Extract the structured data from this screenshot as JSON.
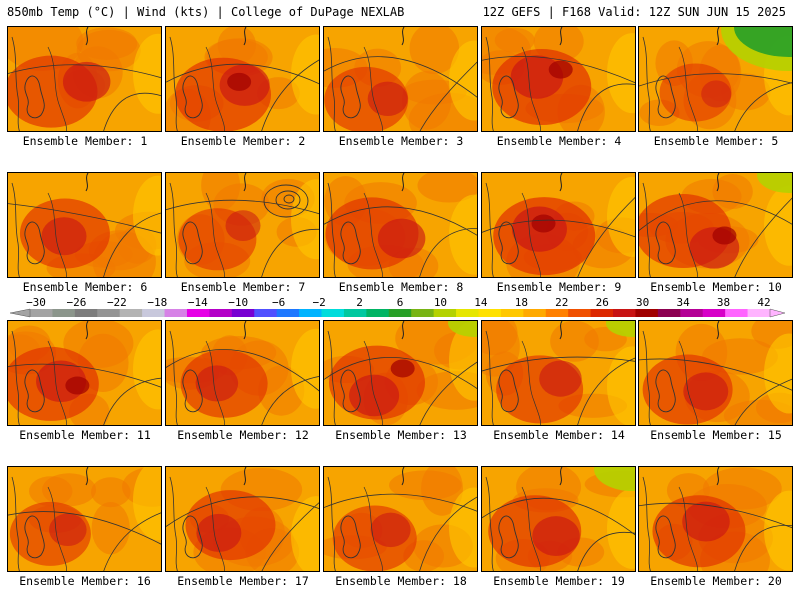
{
  "header": {
    "left": "850mb Temp (°C) | Wind (kts) | College of DuPage NEXLAB",
    "right": "12Z GEFS | F168 Valid: 12Z SUN JUN 15 2025"
  },
  "colorbar": {
    "labels": [
      "-30",
      "-26",
      "-22",
      "-18",
      "-14",
      "-10",
      "-6",
      "-2",
      "2",
      "6",
      "10",
      "14",
      "18",
      "22",
      "26",
      "30",
      "34",
      "38",
      "42"
    ],
    "colors": [
      "#a3a3a3",
      "#8c968c",
      "#7d7d7d",
      "#949494",
      "#b3b3b3",
      "#c8c8dc",
      "#d682e6",
      "#e600e6",
      "#b400c8",
      "#7800d2",
      "#5050ff",
      "#1e78ff",
      "#00b4ff",
      "#00dcdc",
      "#00c8a0",
      "#00b464",
      "#28a028",
      "#78b414",
      "#b4d200",
      "#e6e600",
      "#ffe100",
      "#ffc800",
      "#ffaa00",
      "#ff8000",
      "#f05000",
      "#dc2800",
      "#c81414",
      "#a00000",
      "#8c0050",
      "#b40096",
      "#d700c8",
      "#ff64ff",
      "#ffb4ff"
    ]
  },
  "panels": [
    {
      "label": "Ensemble Member: 1",
      "hot": 0.55,
      "cool": 0
    },
    {
      "label": "Ensemble Member: 2",
      "hot": 0.6,
      "cool": 0
    },
    {
      "label": "Ensemble Member: 3",
      "hot": 0.4,
      "cool": 0
    },
    {
      "label": "Ensemble Member: 4",
      "hot": 0.65,
      "cool": 0
    },
    {
      "label": "Ensemble Member: 5",
      "hot": 0.2,
      "cool": 0.8
    },
    {
      "label": "Ensemble Member: 6",
      "hot": 0.5,
      "cool": 0
    },
    {
      "label": "Ensemble Member: 7",
      "hot": 0.3,
      "cool": 0
    },
    {
      "label": "Ensemble Member: 8",
      "hot": 0.55,
      "cool": 0
    },
    {
      "label": "Ensemble Member: 9",
      "hot": 0.7,
      "cool": 0
    },
    {
      "label": "Ensemble Member: 10",
      "hot": 0.6,
      "cool": 0.2
    },
    {
      "label": "Ensemble Member: 11",
      "hot": 0.6,
      "cool": 0
    },
    {
      "label": "Ensemble Member: 12",
      "hot": 0.45,
      "cool": 0
    },
    {
      "label": "Ensemble Member: 13",
      "hot": 0.6,
      "cool": 0.1
    },
    {
      "label": "Ensemble Member: 14",
      "hot": 0.45,
      "cool": 0.1
    },
    {
      "label": "Ensemble Member: 15",
      "hot": 0.5,
      "cool": 0
    },
    {
      "label": "Ensemble Member: 16",
      "hot": 0.35,
      "cool": 0
    },
    {
      "label": "Ensemble Member: 17",
      "hot": 0.5,
      "cool": 0
    },
    {
      "label": "Ensemble Member: 18",
      "hot": 0.4,
      "cool": 0
    },
    {
      "label": "Ensemble Member: 19",
      "hot": 0.55,
      "cool": 0.3
    },
    {
      "label": "Ensemble Member: 20",
      "hot": 0.55,
      "cool": 0
    }
  ]
}
